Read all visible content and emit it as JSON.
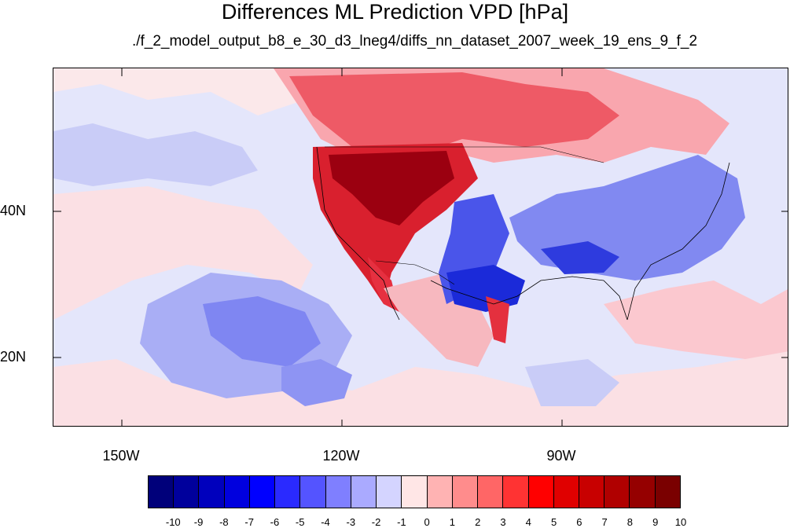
{
  "title": "Differences ML Prediction VPD [hPa]",
  "subtitle": "./f_2_model_output_b8_e_30_d3_lneg4/diffs_nn_dataset_2007_week_19_ens_9_f_2",
  "axes": {
    "x_ticks": [
      "150W",
      "120W",
      "90W"
    ],
    "y_ticks": [
      "40N",
      "20N"
    ]
  },
  "colorbar": {
    "labels": [
      "-10",
      "-9",
      "-8",
      "-7",
      "-6",
      "-5",
      "-4",
      "-3",
      "-2",
      "-1",
      "0",
      "1",
      "2",
      "3",
      "4",
      "5",
      "6",
      "7",
      "8",
      "9",
      "10"
    ],
    "colors": [
      "#00007a",
      "#00009c",
      "#0000bd",
      "#0000de",
      "#0000ff",
      "#2a2aff",
      "#5454ff",
      "#7f7fff",
      "#aaaaff",
      "#d4d4ff",
      "#ffe6e6",
      "#ffb3b3",
      "#ff8c8c",
      "#ff6666",
      "#ff3333",
      "#ff0000",
      "#e00000",
      "#c80000",
      "#b00000",
      "#950000",
      "#7a0000"
    ]
  }
}
